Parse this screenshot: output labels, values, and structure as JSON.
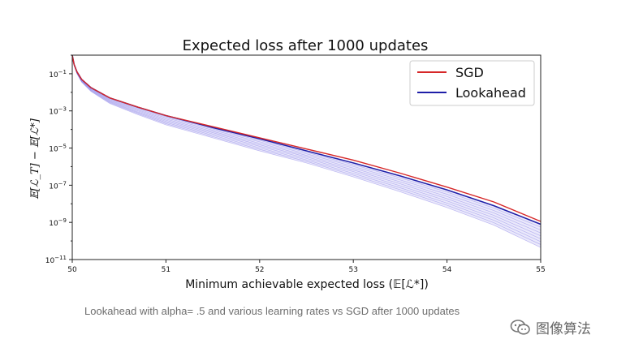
{
  "chart_data": {
    "type": "line",
    "title": "Expected loss after 1000 updates",
    "xlabel": "Minimum achievable expected loss (𝔼[ℒ*])",
    "ylabel": "𝔼[ℒ_T] − 𝔼[ℒ*]",
    "xlim": [
      50,
      55
    ],
    "ylim_log10": [
      -11,
      0
    ],
    "y_scale": "log",
    "x_ticks": [
      50,
      51,
      52,
      53,
      54,
      55
    ],
    "y_ticks": [
      {
        "exp": -11,
        "base": "10",
        "sup": "−11"
      },
      {
        "exp": -9,
        "base": "10",
        "sup": "−9"
      },
      {
        "exp": -7,
        "base": "10",
        "sup": "−7"
      },
      {
        "exp": -5,
        "base": "10",
        "sup": "−5"
      },
      {
        "exp": -3,
        "base": "10",
        "sup": "−3"
      },
      {
        "exp": -1,
        "base": "10",
        "sup": "−1"
      }
    ],
    "legend_position": "top-right",
    "series": [
      {
        "name": "SGD",
        "color": "#d62728",
        "x": [
          50.0,
          50.02,
          50.05,
          50.1,
          50.2,
          50.4,
          50.7,
          51.0,
          51.5,
          52.0,
          52.5,
          53.0,
          53.5,
          54.0,
          54.5,
          55.0
        ],
        "log10_y": [
          0.0,
          -0.5,
          -0.9,
          -1.3,
          -1.75,
          -2.3,
          -2.8,
          -3.25,
          -3.85,
          -4.45,
          -5.05,
          -5.65,
          -6.35,
          -7.1,
          -7.9,
          -8.95
        ]
      },
      {
        "name": "Lookahead",
        "color": "#1f1fa8",
        "band_color": "#8c84e8",
        "x": [
          50.0,
          50.02,
          50.05,
          50.1,
          50.2,
          50.4,
          50.7,
          51.0,
          51.5,
          52.0,
          52.5,
          53.0,
          53.5,
          54.0,
          54.5,
          55.0
        ],
        "log10_y_upper": [
          0.0,
          -0.5,
          -0.9,
          -1.3,
          -1.75,
          -2.3,
          -2.8,
          -3.25,
          -3.9,
          -4.5,
          -5.15,
          -5.8,
          -6.5,
          -7.25,
          -8.1,
          -9.1
        ],
        "log10_y_lower": [
          0.0,
          -0.55,
          -1.0,
          -1.45,
          -1.95,
          -2.6,
          -3.2,
          -3.75,
          -4.45,
          -5.15,
          -5.8,
          -6.55,
          -7.35,
          -8.2,
          -9.15,
          -10.35
        ]
      }
    ]
  },
  "caption": "Lookahead with alpha= .5 and various learning rates vs SGD after 1000 updates",
  "watermark": "图像算法"
}
